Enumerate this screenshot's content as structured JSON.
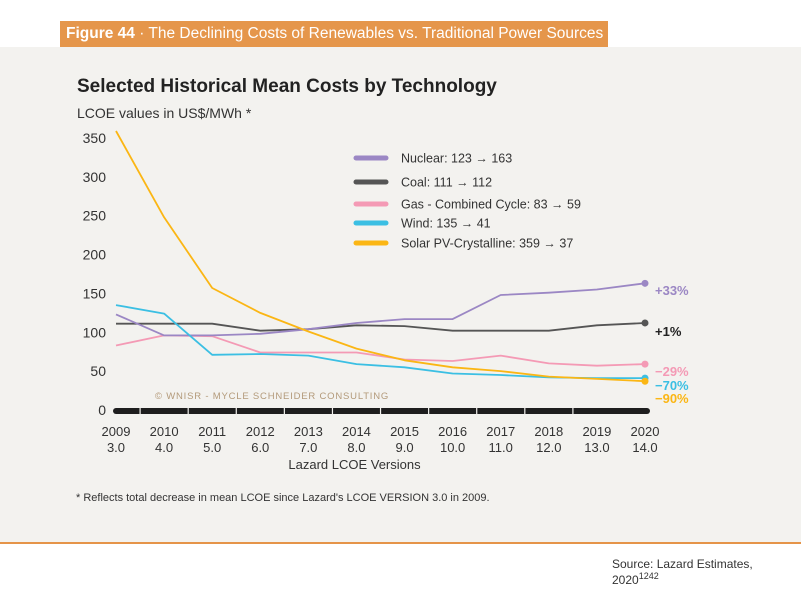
{
  "figure": {
    "label": "Figure 44",
    "separator": " · ",
    "caption": "The Declining Costs of Renewables vs. Traditional Power Sources"
  },
  "footnote": "* Reflects total decrease in mean LCOE since Lazard's  LCOE VERSION 3.0 in 2009.",
  "source": {
    "text": "Source: Lazard Estimates, 2020",
    "ref": "1242"
  },
  "watermark": "© WNISR - Mycle Schneider Consulting",
  "chart_data": {
    "type": "line",
    "title": "Selected Historical Mean Costs by Technology",
    "subtitle": "LCOE values in US$/MWh *",
    "xlabel": "Lazard LCOE Versions",
    "ylabel": "LCOE values in US$/MWh",
    "ylim": [
      0,
      350
    ],
    "yticks": [
      0,
      50,
      100,
      150,
      200,
      250,
      300,
      350
    ],
    "grid": false,
    "legend_position": "top-right",
    "x": [
      "2009",
      "2010",
      "2011",
      "2012",
      "2013",
      "2014",
      "2015",
      "2016",
      "2017",
      "2018",
      "2019",
      "2020"
    ],
    "x_versions": [
      "3.0",
      "4.0",
      "5.0",
      "6.0",
      "7.0",
      "8.0",
      "9.0",
      "10.0",
      "11.0",
      "12.0",
      "13.0",
      "14.0"
    ],
    "series": [
      {
        "name": "Nuclear",
        "legend": "Nuclear: 123 → 163",
        "color": "#9b87c4",
        "change": "+33%",
        "change_color": "#9b87c4",
        "values": [
          123,
          96,
          96,
          98,
          104,
          112,
          117,
          117,
          148,
          151,
          155,
          163
        ]
      },
      {
        "name": "Coal",
        "legend": "Coal: 111 → 112",
        "color": "#555555",
        "change": "+1%",
        "change_color": "#222222",
        "values": [
          111,
          111,
          111,
          102,
          104,
          109,
          108,
          102,
          102,
          102,
          109,
          112
        ]
      },
      {
        "name": "Gas - Combined Cycle",
        "legend": "Gas - Combined Cycle: 83 → 59",
        "color": "#f49ab5",
        "change": "−29%",
        "change_color": "#f49ab5",
        "values": [
          83,
          96,
          95,
          74,
          74,
          74,
          65,
          63,
          70,
          60,
          57,
          59
        ]
      },
      {
        "name": "Wind",
        "legend": "Wind: 135 → 41",
        "color": "#3bbfe3",
        "change": "−70%",
        "change_color": "#3bbfe3",
        "values": [
          135,
          124,
          71,
          72,
          70,
          59,
          55,
          47,
          45,
          42,
          41,
          41
        ]
      },
      {
        "name": "Solar PV-Crystalline",
        "legend": "Solar PV-Crystalline: 359 → 37",
        "color": "#fbb614",
        "change": "−90%",
        "change_color": "#fbb614",
        "values": [
          359,
          248,
          157,
          125,
          101,
          79,
          64,
          55,
          50,
          43,
          40,
          37
        ]
      }
    ]
  }
}
